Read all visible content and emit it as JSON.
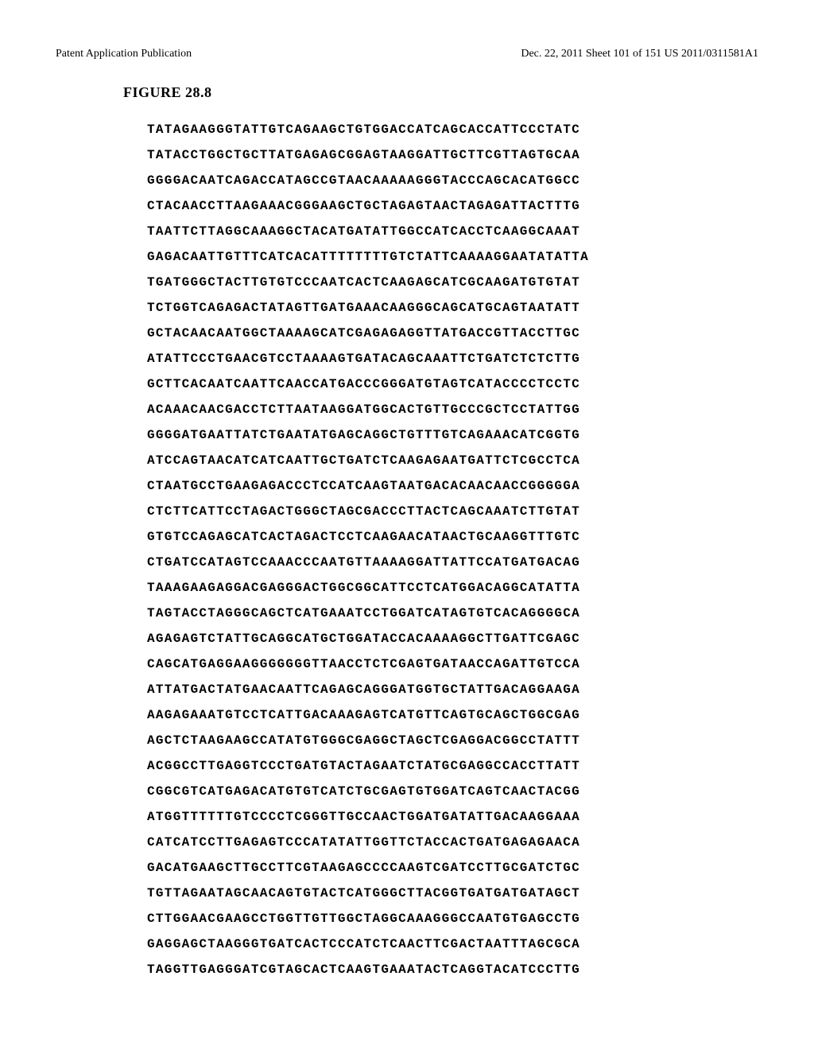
{
  "header": {
    "left": "Patent Application Publication",
    "right": "Dec. 22, 2011  Sheet 101 of 151   US 2011/0311581A1"
  },
  "figure": {
    "title": "FIGURE 28.8"
  },
  "sequence": {
    "lines": [
      "TATAGAAGGGTATTGTCAGAAGCTGTGGACCATCAGCACCATTCCCTATC",
      "TATACCTGGCTGCTTATGAGAGCGGAGTAAGGATTGCTTCGTTAGTGCAA",
      "GGGGACAATCAGACCATAGCCGTAACAAAAAGGGTACCCAGCACATGGCC",
      "CTACAACCTTAAGAAACGGGAAGCTGCTAGAGTAACTAGAGATTACTTTG",
      "TAATTCTTAGGCAAAGGCTACATGATATTGGCCATCACCTCAAGGCAAAT",
      "GAGACAATTGTTTCATCACATTTTTTTTGTCTATTCAAAAGGAATATATTA",
      "TGATGGGCTACTTGTGTCCCAATCACTCAAGAGCATCGCAAGATGTGTAT",
      "TCTGGTCAGAGACTATAGTTGATGAAACAAGGGCAGCATGCAGTAATATT",
      "GCTACAACAATGGCTAAAAGCATCGAGAGAGGTTATGACCGTTACCTTGC",
      "ATATTCCCTGAACGTCCTAAAAGTGATACAGCAAATTCTGATCTCTCTTG",
      "GCTTCACAATCAATTCAACCATGACCCGGGATGTAGTCATACCCCTCCTC",
      "ACAAACAACGACCTCTTAATAAGGATGGCACTGTTGCCCGCTCCTATTGG",
      "GGGGATGAATTATCTGAATATGAGCAGGCTGTTTGTCAGAAACATCGGTG",
      "ATCCAGTAACATCATCAATTGCTGATCTCAAGAGAATGATTCTCGCCTCA",
      "CTAATGCCTGAAGAGACCCTCCATCAAGTAATGACACAACAACCGGGGGA",
      "CTCTTCATTCCTAGACTGGGCTAGCGACCCTTACTCAGCAAATCTTGTAT",
      "GTGTCCAGAGCATCACTAGACTCCTCAAGAACATAACTGCAAGGTTTGTC",
      "CTGATCCATAGTCCAAACCCAATGTTAAAAGGATTATTCCATGATGACAG",
      "TAAAGAAGAGGACGAGGGACTGGCGGCATTCCTCATGGACAGGCATATTA",
      "TAGTACCTAGGGCAGCTCATGAAATCCTGGATCATAGTGTCACAGGGGCA",
      "AGAGAGTCTATTGCAGGCATGCTGGATACCACAAAAGGCTTGATTCGAGC",
      "CAGCATGAGGAAGGGGGGGTTAACCTCTCGAGTGATAACCAGATTGTCCA",
      "ATTATGACTATGAACAATTCAGAGCAGGGATGGTGCTATTGACAGGAAGA",
      "AAGAGAAATGTCCTCATTGACAAAGAGTCATGTTCAGTGCAGCTGGCGAG",
      "AGCTCTAAGAAGCCATATGTGGGCGAGGCTAGCTCGAGGACGGCCTATTT",
      "ACGGCCTTGAGGTCCCTGATGTACTAGAATCTATGCGAGGCCACCTTATT",
      "CGGCGTCATGAGACATGTGTCATCTGCGAGTGTGGATCAGTCAACTACGG",
      "ATGGTTTTTTGTCCCCTCGGGTTGCCAACTGGATGATATTGACAAGGAAA",
      "CATCATCCTTGAGAGTCCCATATATTGGTTCTACCACTGATGAGAGAACA",
      "GACATGAAGCTTGCCTTCGTAAGAGCCCCAAGTCGATCCTTGCGATCTGC",
      "TGTTAGAATAGCAACAGTGTACTCATGGGCTTACGGTGATGATGATAGCT",
      "CTTGGAACGAAGCCTGGTTGTTGGCTAGGCAAAGGGCCAATGTGAGCCTG",
      "GAGGAGCTAAGGGTGATCACTCCCATCTCAACTTCGACTAATTTAGCGCA",
      "TAGGTTGAGGGATCGTAGCACTCAAGTGAAATACTCAGGTACATCCCTTG"
    ]
  }
}
